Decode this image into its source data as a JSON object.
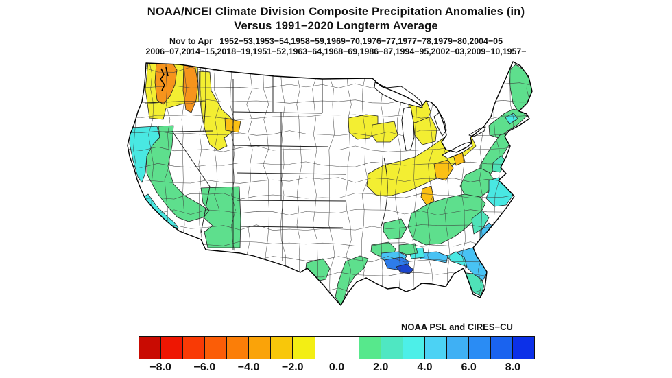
{
  "title": {
    "line1": "NOAA/NCEI Climate Division Composite Precipitation Anomalies (in)",
    "line2": "Versus 1991−2020 Longterm Average"
  },
  "subtitle": {
    "line1": "Nov to Apr   1952−53,1953−54,1958−59,1969−70,1976−77,1977−78,1979−80,2004−05",
    "line2": "2006−07,2014−15,2018−19,1951−52,1963−64,1968−69,1986−87,1994−95,2002−03,2009−10,1957−"
  },
  "credit": "NOAA PSL and CIRES−CU",
  "colorbar": {
    "units": "in",
    "range": [
      -9,
      9
    ],
    "cell_width_units": 1,
    "tick_labels": [
      "−8.0",
      "−6.0",
      "−4.0",
      "−2.0",
      "0.0",
      "2.0",
      "4.0",
      "6.0",
      "8.0"
    ],
    "cell_colors": [
      "#c90b02",
      "#ee1602",
      "#f93a05",
      "#fb5d07",
      "#fb7e08",
      "#faa309",
      "#f8c70a",
      "#f3ee14",
      "#ffffff",
      "#ffffff",
      "#57e88c",
      "#4fe7c2",
      "#4defe8",
      "#4cd2f4",
      "#3fb0f4",
      "#2a8cf4",
      "#1a63ef",
      "#0c30e8"
    ]
  },
  "map": {
    "palette": {
      "yellow": "#f3ee32",
      "gold": "#fbc014",
      "orange": "#f6941c",
      "green": "#5edf8d",
      "teal": "#4fe2b8",
      "cyan": "#49e8e2",
      "sky": "#48c2f4",
      "royal": "#2e7ce9",
      "navy": "#1b46cf",
      "no_anomaly": "#ffffff",
      "boundary": "#222222"
    },
    "regions": [
      {
        "name": "washington-coastal",
        "anomaly_in": "-2 to -1",
        "color": "#f3ee32"
      },
      {
        "name": "washington-puget-sound",
        "anomaly_in": "-4 to -3",
        "color": "#f6941c"
      },
      {
        "name": "washington-cascades",
        "anomaly_in": "-4 to -3",
        "color": "#f6941c"
      },
      {
        "name": "idaho-west-montana",
        "anomaly_in": "-2 to -1",
        "color": "#f3ee32"
      },
      {
        "name": "yellowstone-area",
        "anomaly_in": "-3 to -2",
        "color": "#fbc014"
      },
      {
        "name": "norcal-coast",
        "anomaly_in": "+3 to +4",
        "color": "#49e8e2"
      },
      {
        "name": "california-central",
        "anomaly_in": "+1 to +2",
        "color": "#5edf8d"
      },
      {
        "name": "socal-coast",
        "anomaly_in": "+3 to +4",
        "color": "#49e8e2"
      },
      {
        "name": "san-diego-coast",
        "anomaly_in": "+3 to +4",
        "color": "#49e8e2"
      },
      {
        "name": "arizona-new-mexico",
        "anomaly_in": "+1 to +2",
        "color": "#5edf8d"
      },
      {
        "name": "minnesota",
        "anomaly_in": "-2 to -1",
        "color": "#f3ee32"
      },
      {
        "name": "wisconsin",
        "anomaly_in": "-2 to -1",
        "color": "#f3ee32"
      },
      {
        "name": "michigan-upper",
        "anomaly_in": "-2 to -1",
        "color": "#f3ee32"
      },
      {
        "name": "michigan-lower",
        "anomaly_in": "-2 to -1",
        "color": "#f3ee32"
      },
      {
        "name": "ohio-valley",
        "anomaly_in": "-2 to -1",
        "color": "#f3ee32"
      },
      {
        "name": "west-virginia",
        "anomaly_in": "-3 to -2",
        "color": "#fbc014"
      },
      {
        "name": "pennsylvania-core",
        "anomaly_in": "-3 to -2",
        "color": "#fbc014"
      },
      {
        "name": "tennessee-strip",
        "anomaly_in": "-3 to -2",
        "color": "#fbc014"
      },
      {
        "name": "maine-coast",
        "anomaly_in": "+1 to +2",
        "color": "#5edf8d"
      },
      {
        "name": "new-england-coast",
        "anomaly_in": "+1 to +2",
        "color": "#5edf8d"
      },
      {
        "name": "cape-cod",
        "anomaly_in": "+3 to +4",
        "color": "#49e8e2"
      },
      {
        "name": "mid-atlantic",
        "anomaly_in": "+1 to +2",
        "color": "#5edf8d"
      },
      {
        "name": "delmarva",
        "anomaly_in": "+2 to +3",
        "color": "#4fe2b8"
      },
      {
        "name": "virginia-carolina",
        "anomaly_in": "+1 to +2",
        "color": "#5edf8d"
      },
      {
        "name": "north-carolina-coast",
        "anomaly_in": "+3 to +4",
        "color": "#49e8e2"
      },
      {
        "name": "southeast-interior",
        "anomaly_in": "+1 to +2",
        "color": "#5edf8d"
      },
      {
        "name": "sc-ga-coastal-plain",
        "anomaly_in": "+2 to +3",
        "color": "#4fe2b8"
      },
      {
        "name": "georgia-coast",
        "anomaly_in": "+4 to +5",
        "color": "#48c2f4"
      },
      {
        "name": "florida-north",
        "anomaly_in": "+4 to +5",
        "color": "#48c2f4"
      },
      {
        "name": "florida-south",
        "anomaly_in": "+2 to +3",
        "color": "#4fe2b8"
      },
      {
        "name": "florida-big-bend",
        "anomaly_in": "+3 to +4",
        "color": "#49e8e2"
      },
      {
        "name": "florida-panhandle-coast",
        "anomaly_in": "+4 to +5",
        "color": "#48c2f4"
      },
      {
        "name": "alabama-mississippi-coast",
        "anomaly_in": "+3 to +4",
        "color": "#49e8e2"
      },
      {
        "name": "louisiana-west",
        "anomaly_in": "+1 to +2",
        "color": "#5edf8d"
      },
      {
        "name": "louisiana-east",
        "anomaly_in": "+1 to +2",
        "color": "#5edf8d"
      },
      {
        "name": "louisiana-coast",
        "anomaly_in": "+4 to +5",
        "color": "#48c2f4"
      },
      {
        "name": "louisiana-delta",
        "anomaly_in": "+6 to +7",
        "color": "#2e7ce9"
      },
      {
        "name": "louisiana-delta-mouth",
        "anomaly_in": "+7 to +8",
        "color": "#1b46cf"
      },
      {
        "name": "texas-coast",
        "anomaly_in": "+1 to +2",
        "color": "#5edf8d"
      },
      {
        "name": "texas-inland",
        "anomaly_in": "+1 to +2",
        "color": "#5edf8d"
      },
      {
        "name": "mississippi-west",
        "anomaly_in": "+1 to +2",
        "color": "#5edf8d"
      }
    ]
  }
}
